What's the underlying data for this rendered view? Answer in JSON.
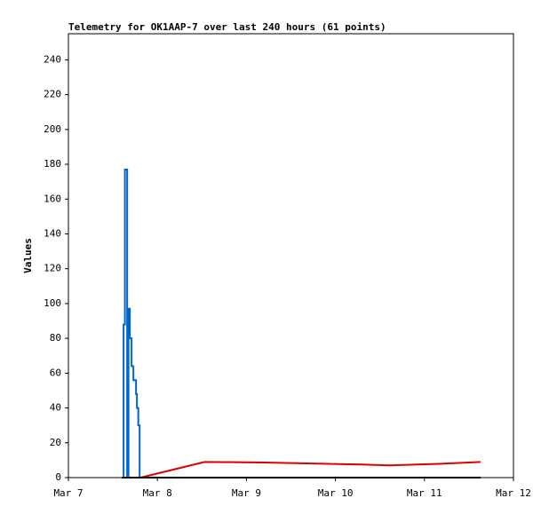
{
  "chart_data": {
    "type": "line",
    "drawstyle": "steps-post",
    "title": "Telemetry for OK1AAP-7 over last 240 hours (61 points)",
    "ylabel": "Values",
    "xlim": [
      7,
      12
    ],
    "xticks": [
      {
        "value": 7,
        "label": "Mar 7"
      },
      {
        "value": 8,
        "label": "Mar 8"
      },
      {
        "value": 9,
        "label": "Mar 9"
      },
      {
        "value": 10,
        "label": "Mar 10"
      },
      {
        "value": 11,
        "label": "Mar 11"
      },
      {
        "value": 12,
        "label": "Mar 12"
      }
    ],
    "ylim": [
      0,
      255
    ],
    "yticks": [
      0,
      20,
      40,
      60,
      80,
      100,
      120,
      140,
      160,
      180,
      200,
      220,
      240
    ],
    "series": [
      {
        "color": "#0066cc",
        "x": [
          7.61,
          7.62,
          7.635,
          7.66,
          7.675,
          7.69,
          7.71,
          7.73,
          7.76,
          7.77,
          7.785,
          7.8
        ],
        "values": [
          0,
          88,
          177,
          0,
          97,
          80,
          64,
          56,
          48,
          40,
          30,
          0
        ]
      },
      {
        "color": "#dd0000",
        "x": [
          7.81,
          8.53,
          9.2,
          10.3,
          10.6,
          11.2,
          11.63
        ],
        "values": [
          0,
          9,
          8.7,
          7.5,
          7,
          8,
          9
        ]
      },
      {
        "color": "#000000",
        "x": [
          7.6,
          11.63
        ],
        "values": [
          0,
          0
        ]
      }
    ]
  }
}
